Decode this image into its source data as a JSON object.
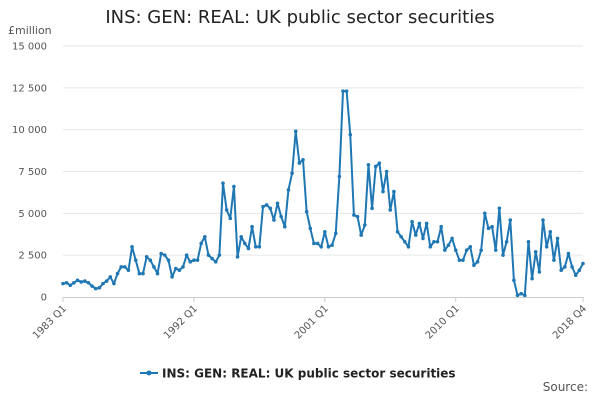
{
  "title": "INS: GEN: REAL: UK public sector securities",
  "unit_label": "£million",
  "source_label": "Source:",
  "colors": {
    "series": "#1f77b4",
    "grid": "#e6e6e6",
    "axis": "#cccccc"
  },
  "chart_data": {
    "type": "line",
    "title": "INS: GEN: REAL: UK public sector securities",
    "ylabel": "£million",
    "xlabel": "",
    "ylim": [
      0,
      15000
    ],
    "yticks": [
      0,
      2500,
      5000,
      7500,
      10000,
      12500,
      15000
    ],
    "ytick_labels": [
      "0",
      "2 500",
      "5 000",
      "7 500",
      "10 000",
      "12 500",
      "15 000"
    ],
    "start": "1983 Q1",
    "end": "2018 Q4",
    "xtick_labels": [
      "1983 Q1",
      "1992 Q1",
      "2001 Q1",
      "2010 Q1",
      "2018 Q4"
    ],
    "xtick_index": [
      0,
      36,
      72,
      108,
      143
    ],
    "legend": "bottom",
    "grid": true,
    "series": [
      {
        "name": "INS: GEN: REAL: UK public sector securities",
        "x": [
          "1983 Q1",
          "1983 Q2",
          "1983 Q3",
          "1983 Q4",
          "1984 Q1",
          "1984 Q2",
          "1984 Q3",
          "1984 Q4",
          "1985 Q1",
          "1985 Q2",
          "1985 Q3",
          "1985 Q4",
          "1986 Q1",
          "1986 Q2",
          "1986 Q3",
          "1986 Q4",
          "1987 Q1",
          "1987 Q2",
          "1987 Q3",
          "1987 Q4",
          "1988 Q1",
          "1988 Q2",
          "1988 Q3",
          "1988 Q4",
          "1989 Q1",
          "1989 Q2",
          "1989 Q3",
          "1989 Q4",
          "1990 Q1",
          "1990 Q2",
          "1990 Q3",
          "1990 Q4",
          "1991 Q1",
          "1991 Q2",
          "1991 Q3",
          "1991 Q4",
          "1992 Q1",
          "1992 Q2",
          "1992 Q3",
          "1992 Q4",
          "1993 Q1",
          "1993 Q2",
          "1993 Q3",
          "1993 Q4",
          "1994 Q1",
          "1994 Q2",
          "1994 Q3",
          "1994 Q4",
          "1995 Q1",
          "1995 Q2",
          "1995 Q3",
          "1995 Q4",
          "1996 Q1",
          "1996 Q2",
          "1996 Q3",
          "1996 Q4",
          "1997 Q1",
          "1997 Q2",
          "1997 Q3",
          "1997 Q4",
          "1998 Q1",
          "1998 Q2",
          "1998 Q3",
          "1998 Q4",
          "1999 Q1",
          "1999 Q2",
          "1999 Q3",
          "1999 Q4",
          "2000 Q1",
          "2000 Q2",
          "2000 Q3",
          "2000 Q4",
          "2001 Q1",
          "2001 Q2",
          "2001 Q3",
          "2001 Q4",
          "2002 Q1",
          "2002 Q2",
          "2002 Q3",
          "2002 Q4",
          "2003 Q1",
          "2003 Q2",
          "2003 Q3",
          "2003 Q4",
          "2004 Q1",
          "2004 Q2",
          "2004 Q3",
          "2004 Q4",
          "2005 Q1",
          "2005 Q2",
          "2005 Q3",
          "2005 Q4",
          "2006 Q1",
          "2006 Q2",
          "2006 Q3",
          "2006 Q4",
          "2007 Q1",
          "2007 Q2",
          "2007 Q3",
          "2007 Q4",
          "2008 Q1",
          "2008 Q2",
          "2008 Q3",
          "2008 Q4",
          "2009 Q1",
          "2009 Q2",
          "2009 Q3",
          "2009 Q4",
          "2010 Q1",
          "2010 Q2",
          "2010 Q3",
          "2010 Q4",
          "2011 Q1",
          "2011 Q2",
          "2011 Q3",
          "2011 Q4",
          "2012 Q1",
          "2012 Q2",
          "2012 Q3",
          "2012 Q4",
          "2013 Q1",
          "2013 Q2",
          "2013 Q3",
          "2013 Q4",
          "2014 Q1",
          "2014 Q2",
          "2014 Q3",
          "2014 Q4",
          "2015 Q1",
          "2015 Q2",
          "2015 Q3",
          "2015 Q4",
          "2016 Q1",
          "2016 Q2",
          "2016 Q3",
          "2016 Q4",
          "2017 Q1",
          "2017 Q2",
          "2017 Q3",
          "2017 Q4",
          "2018 Q1",
          "2018 Q2",
          "2018 Q3",
          "2018 Q4"
        ],
        "values": [
          800,
          850,
          700,
          850,
          1000,
          900,
          950,
          850,
          650,
          500,
          550,
          800,
          950,
          1200,
          800,
          1400,
          1800,
          1800,
          1600,
          3000,
          2200,
          1400,
          1400,
          2400,
          2200,
          1800,
          1400,
          2600,
          2500,
          2200,
          1200,
          1700,
          1600,
          1800,
          2500,
          2100,
          2200,
          2200,
          3200,
          3600,
          2500,
          2300,
          2100,
          2500,
          6800,
          5200,
          4700,
          6600,
          2400,
          3600,
          3200,
          2900,
          4200,
          3000,
          3000,
          5400,
          5500,
          5300,
          4600,
          5600,
          4800,
          4200,
          6400,
          7400,
          9900,
          8000,
          8200,
          5100,
          4100,
          3200,
          3200,
          3000,
          3900,
          3000,
          3100,
          3800,
          7200,
          12300,
          12300,
          9700,
          4900,
          4800,
          3700,
          4300,
          7900,
          5300,
          7800,
          8000,
          6300,
          7500,
          5200,
          6300,
          3900,
          3600,
          3300,
          3000,
          4500,
          3700,
          4400,
          3500,
          4400,
          3000,
          3300,
          3300,
          4200,
          2800,
          3100,
          3500,
          2800,
          2200,
          2200,
          2800,
          3000,
          1900,
          2100,
          2800,
          5000,
          4100,
          4200,
          2800,
          5300,
          2500,
          3300,
          4600,
          1000,
          100,
          200,
          100,
          3300,
          1100,
          2700,
          1500,
          4600,
          3000,
          3900,
          2200,
          3500,
          1600,
          1800,
          2600,
          1800,
          1300,
          1600,
          2000
        ]
      }
    ]
  }
}
